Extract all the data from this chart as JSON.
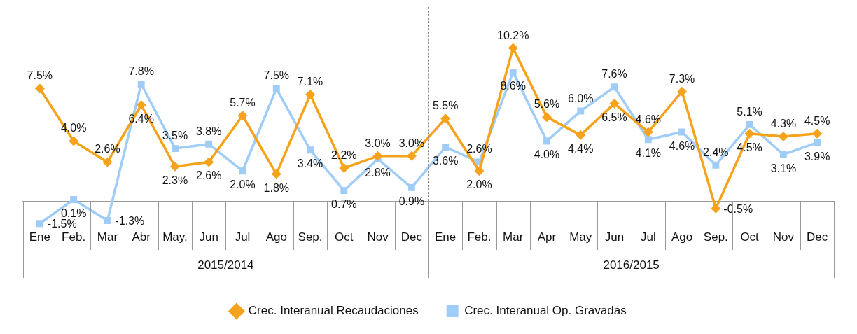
{
  "chart_data": {
    "type": "line",
    "categories": [
      "Ene",
      "Feb.",
      "Mar",
      "Abr",
      "May.",
      "Jun",
      "Jul",
      "Ago",
      "Sep.",
      "Oct",
      "Nov",
      "Dec",
      "Ene",
      "Feb.",
      "Mar",
      "Apr",
      "May",
      "Jun",
      "Jul",
      "Ago",
      "Sep.",
      "Oct",
      "Nov",
      "Dec"
    ],
    "series": [
      {
        "name": "Crec. Interanual Recaudaciones",
        "color": "#f7a21b",
        "marker": "diamond",
        "values": [
          7.5,
          4.0,
          2.6,
          6.4,
          2.3,
          2.6,
          5.7,
          1.8,
          7.1,
          2.2,
          3.0,
          3.0,
          5.5,
          2.0,
          10.2,
          5.6,
          4.4,
          6.5,
          4.6,
          7.3,
          -0.5,
          4.5,
          4.3,
          4.5
        ],
        "value_labels": [
          "7.5%",
          "4.0%",
          "2.6%",
          "6.4%",
          "2.3%",
          "2.6%",
          "5.7%",
          "1.8%",
          "7.1%",
          "2.2%",
          "3.0%",
          "3.0%",
          "5.5%",
          "2.0%",
          "10.2%",
          "5.6%",
          "4.4%",
          "6.5%",
          "4.6%",
          "7.3%",
          "-0.5%",
          "4.5%",
          "4.3%",
          "4.5%"
        ]
      },
      {
        "name": "Crec. Interanual Op. Gravadas",
        "color": "#9fcdf7",
        "marker": "square",
        "values": [
          -1.5,
          0.1,
          -1.3,
          7.8,
          3.5,
          3.8,
          2.0,
          7.5,
          3.4,
          0.7,
          2.8,
          0.9,
          3.6,
          2.6,
          8.6,
          4.0,
          6.0,
          7.6,
          4.1,
          4.6,
          2.4,
          5.1,
          3.1,
          3.9
        ],
        "value_labels": [
          "-1.5%",
          "0.1%",
          "-1.3%",
          "7.8%",
          "3.5%",
          "3.8%",
          "2.0%",
          "7.5%",
          "3.4%",
          "0.7%",
          "2.8%",
          "0.9%",
          "3.6%",
          "2.6%",
          "8.6%",
          "4.0%",
          "6.0%",
          "7.6%",
          "4.1%",
          "4.6%",
          "2.4%",
          "5.1%",
          "3.1%",
          "3.9%"
        ]
      }
    ],
    "annotations": [
      "2015/2014",
      "2016/2015"
    ],
    "tick_labels": "x",
    "legend": "bottom"
  }
}
